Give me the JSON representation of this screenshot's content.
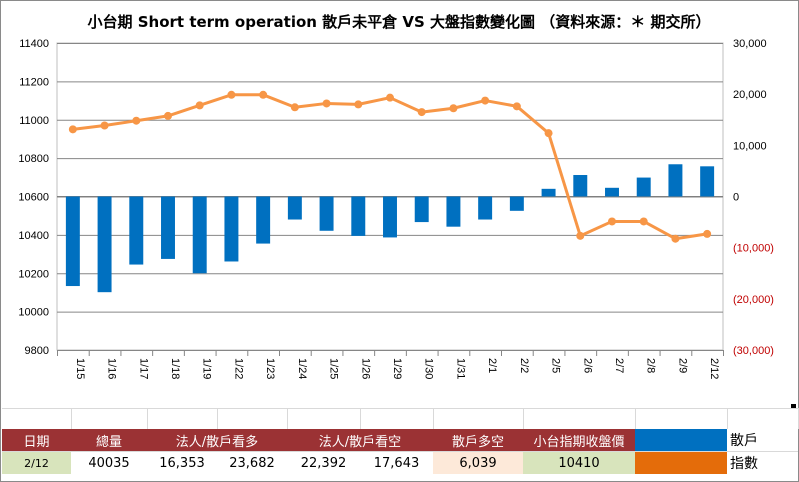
{
  "chart_data": {
    "type": "bar+line",
    "title": "小台期 Short term operation  散戶未平倉 VS 大盤指數變化圖  （資料來源：＊ 期交所）",
    "categories": [
      "1/15",
      "1/16",
      "1/17",
      "1/18",
      "1/19",
      "1/22",
      "1/23",
      "1/24",
      "1/25",
      "1/26",
      "1/29",
      "1/30",
      "1/31",
      "2/1",
      "2/2",
      "2/5",
      "2/6",
      "2/7",
      "2/8",
      "2/9",
      "2/12"
    ],
    "series": [
      {
        "name": "散戶",
        "type": "bar",
        "axis": "right",
        "color": "#0070c0",
        "values": [
          -17500,
          -18700,
          -13300,
          -12200,
          -15000,
          -12700,
          -9200,
          -4500,
          -6700,
          -7700,
          -8000,
          -5000,
          -5900,
          -4500,
          -2800,
          1500,
          4200,
          1700,
          3700,
          6300,
          5900
        ]
      },
      {
        "name": "指數",
        "type": "line",
        "axis": "left",
        "color": "#f79646",
        "values": [
          10950,
          10970,
          10995,
          11020,
          11075,
          11130,
          11130,
          11065,
          11085,
          11080,
          11115,
          11040,
          11060,
          11100,
          11070,
          10930,
          10395,
          10470,
          10470,
          10380,
          10405
        ]
      }
    ],
    "y_left": {
      "min": 9800,
      "max": 11400,
      "step": 200,
      "ticks": [
        "9800",
        "10000",
        "10200",
        "10400",
        "10600",
        "10800",
        "11000",
        "11200",
        "11400"
      ]
    },
    "y_right": {
      "min": -30000,
      "max": 30000,
      "step": 10000,
      "ticks": [
        "(30,000)",
        "(20,000)",
        "(10,000)",
        "0",
        "10,000",
        "20,000",
        "30,000"
      ],
      "negative_color": "#c00000"
    },
    "grid": "horizontal"
  },
  "table": {
    "headers": [
      "日期",
      "總量",
      "法人/散戶看多",
      "法人/散戶看空",
      "散戶多空",
      "小台指期收盤價"
    ],
    "values": {
      "date": "2/12",
      "total": "40035",
      "long_inst": "16,353",
      "long_retail": "23,682",
      "short_inst": "22,392",
      "short_retail": "17,643",
      "retail_net": "6,039",
      "close": "10410"
    },
    "legend": {
      "retail": "散戶",
      "index": "指數",
      "retail_color": "#0070c0",
      "index_color": "#e46c0a"
    }
  }
}
